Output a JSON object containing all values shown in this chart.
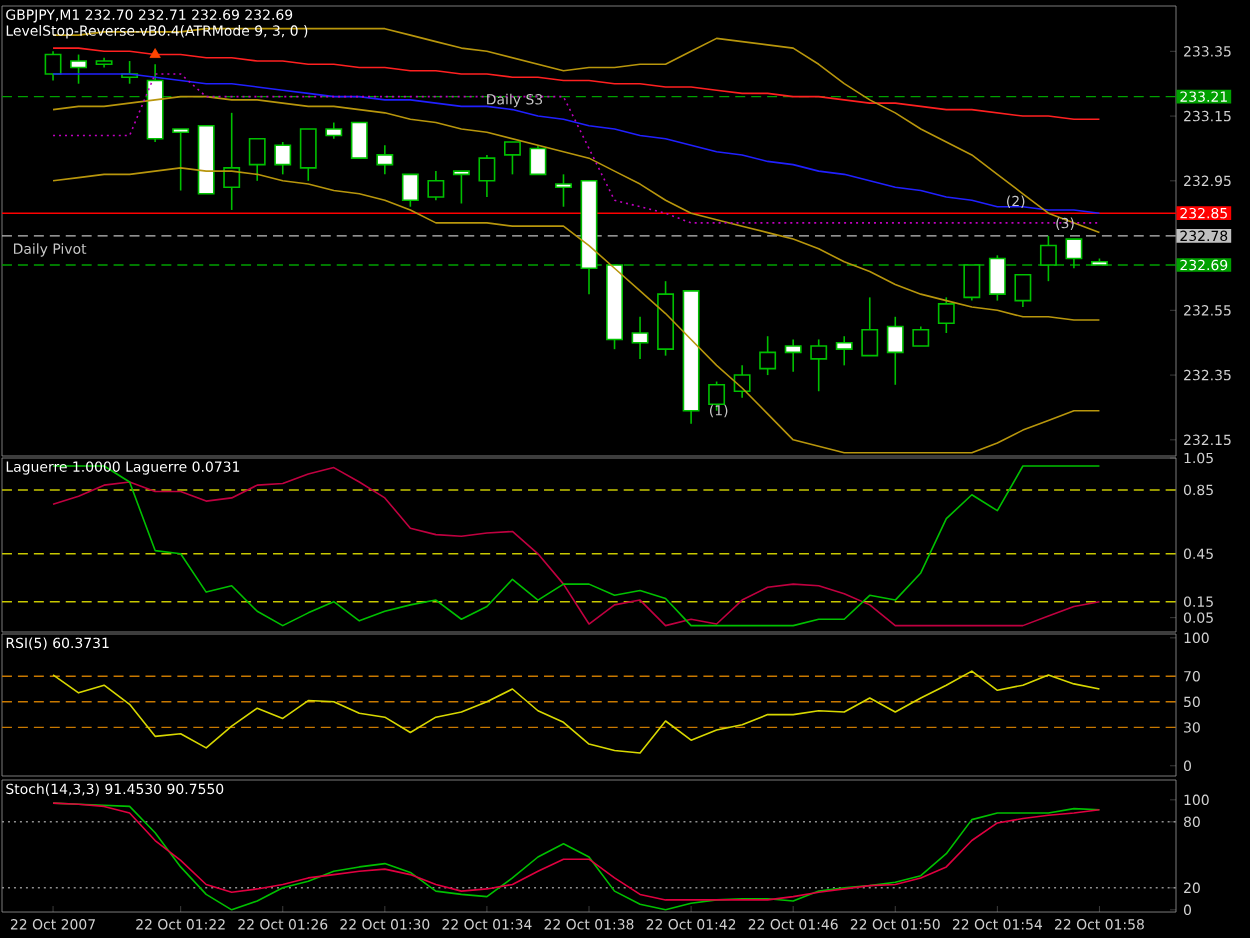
{
  "chart_data": [
    {
      "type": "candlestick",
      "title": "GBPJPY,M1  232.70 232.71 232.69 232.69",
      "subtitle": "LevelStop-Reverse-vB0.4(ATRMode 9, 3, 0 )",
      "color": "#00c000",
      "tick_labels": "y",
      "categories": [
        null,
        null,
        null,
        null,
        null,
        null,
        null,
        null,
        null,
        null,
        null,
        null,
        null,
        null,
        null,
        null,
        null,
        null,
        null,
        null,
        null,
        null,
        null,
        null,
        null,
        null,
        null,
        null,
        null,
        null,
        null,
        null,
        null,
        null,
        null,
        null,
        null,
        null,
        null,
        null,
        null,
        null
      ],
      "ohlc": [
        [
          233.28,
          233.35,
          233.26,
          233.34
        ],
        [
          233.32,
          233.34,
          233.25,
          233.3
        ],
        [
          233.31,
          233.33,
          233.3,
          233.32
        ],
        [
          233.27,
          233.32,
          233.25,
          233.28
        ],
        [
          233.26,
          233.31,
          233.07,
          233.08
        ],
        [
          233.11,
          233.11,
          232.92,
          233.1
        ],
        [
          233.12,
          233.12,
          232.91,
          232.91
        ],
        [
          232.93,
          233.16,
          232.86,
          232.99
        ],
        [
          233.0,
          233.08,
          232.95,
          233.08
        ],
        [
          233.06,
          233.07,
          232.97,
          233.0
        ],
        [
          232.99,
          233.11,
          232.95,
          233.11
        ],
        [
          233.11,
          233.13,
          233.08,
          233.09
        ],
        [
          233.13,
          233.13,
          233.02,
          233.02
        ],
        [
          233.03,
          233.06,
          232.97,
          233.0
        ],
        [
          232.97,
          232.97,
          232.87,
          232.89
        ],
        [
          232.9,
          232.98,
          232.89,
          232.95
        ],
        [
          232.98,
          232.98,
          232.88,
          232.97
        ],
        [
          232.95,
          233.03,
          232.9,
          233.02
        ],
        [
          233.03,
          233.07,
          232.97,
          233.07
        ],
        [
          233.05,
          233.06,
          232.97,
          232.97
        ],
        [
          232.94,
          232.97,
          232.87,
          232.93
        ],
        [
          232.95,
          232.95,
          232.6,
          232.68
        ],
        [
          232.69,
          232.69,
          232.43,
          232.46
        ],
        [
          232.48,
          232.53,
          232.4,
          232.45
        ],
        [
          232.43,
          232.64,
          232.41,
          232.6
        ],
        [
          232.61,
          232.61,
          232.2,
          232.24
        ],
        [
          232.26,
          232.33,
          232.24,
          232.32
        ],
        [
          232.3,
          232.38,
          232.28,
          232.35
        ],
        [
          232.37,
          232.47,
          232.35,
          232.42
        ],
        [
          232.44,
          232.46,
          232.36,
          232.42
        ],
        [
          232.4,
          232.46,
          232.3,
          232.44
        ],
        [
          232.45,
          232.47,
          232.38,
          232.43
        ],
        [
          232.41,
          232.59,
          232.41,
          232.49
        ],
        [
          232.5,
          232.53,
          232.32,
          232.42
        ],
        [
          232.44,
          232.5,
          232.44,
          232.49
        ],
        [
          232.51,
          232.59,
          232.48,
          232.57
        ],
        [
          232.59,
          232.69,
          232.58,
          232.69
        ],
        [
          232.71,
          232.72,
          232.58,
          232.6
        ],
        [
          232.58,
          232.66,
          232.56,
          232.66
        ],
        [
          232.69,
          232.78,
          232.64,
          232.75
        ],
        [
          232.77,
          232.77,
          232.68,
          232.71
        ],
        [
          232.7,
          232.71,
          232.69,
          232.69
        ]
      ],
      "series": [
        {
          "type": "line",
          "color": "#ff2020",
          "values": [
            233.36,
            233.36,
            233.35,
            233.35,
            233.34,
            233.34,
            233.33,
            233.33,
            233.32,
            233.32,
            233.31,
            233.31,
            233.3,
            233.3,
            233.29,
            233.29,
            233.28,
            233.28,
            233.27,
            233.27,
            233.26,
            233.26,
            233.25,
            233.25,
            233.24,
            233.24,
            233.23,
            233.22,
            233.22,
            233.21,
            233.21,
            233.2,
            233.19,
            233.19,
            233.18,
            233.17,
            233.17,
            233.16,
            233.15,
            233.15,
            233.14,
            233.14
          ]
        },
        {
          "type": "line",
          "color": "#2020ff",
          "values": [
            233.28,
            233.28,
            233.28,
            233.28,
            233.27,
            233.26,
            233.25,
            233.25,
            233.24,
            233.23,
            233.22,
            233.21,
            233.21,
            233.2,
            233.2,
            233.19,
            233.18,
            233.18,
            233.17,
            233.15,
            233.14,
            233.12,
            233.11,
            233.09,
            233.08,
            233.06,
            233.04,
            233.03,
            233.01,
            233.0,
            232.98,
            232.97,
            232.95,
            232.93,
            232.92,
            232.9,
            232.89,
            232.87,
            232.87,
            232.86,
            232.86,
            232.85
          ]
        },
        {
          "type": "line",
          "color": "#b8960c",
          "values": [
            233.4,
            233.4,
            233.41,
            233.41,
            233.41,
            233.41,
            233.42,
            233.42,
            233.42,
            233.42,
            233.42,
            233.42,
            233.42,
            233.42,
            233.4,
            233.38,
            233.36,
            233.35,
            233.33,
            233.31,
            233.29,
            233.3,
            233.3,
            233.31,
            233.31,
            233.35,
            233.39,
            233.38,
            233.37,
            233.36,
            233.31,
            233.25,
            233.2,
            233.16,
            233.11,
            233.07,
            233.03,
            232.97,
            232.91,
            232.85,
            232.82,
            232.79
          ]
        },
        {
          "type": "line",
          "color": "#b8960c",
          "values": [
            233.17,
            233.18,
            233.18,
            233.19,
            233.2,
            233.21,
            233.21,
            233.2,
            233.2,
            233.19,
            233.18,
            233.18,
            233.17,
            233.16,
            233.14,
            233.13,
            233.11,
            233.1,
            233.08,
            233.06,
            233.04,
            233.02,
            232.98,
            232.94,
            232.89,
            232.85,
            232.83,
            232.81,
            232.79,
            232.77,
            232.74,
            232.7,
            232.67,
            232.63,
            232.6,
            232.58,
            232.56,
            232.55,
            232.53,
            232.53,
            232.52,
            232.52
          ]
        },
        {
          "type": "line",
          "color": "#b8960c",
          "values": [
            232.95,
            232.96,
            232.97,
            232.97,
            232.98,
            232.99,
            232.98,
            232.98,
            232.97,
            232.95,
            232.94,
            232.92,
            232.91,
            232.89,
            232.86,
            232.82,
            232.82,
            232.82,
            232.81,
            232.81,
            232.81,
            232.75,
            232.68,
            232.61,
            232.54,
            232.46,
            232.38,
            232.31,
            232.23,
            232.15,
            232.13,
            232.11,
            232.11,
            232.11,
            232.11,
            232.11,
            232.11,
            232.14,
            232.18,
            232.21,
            232.24,
            232.24
          ]
        },
        {
          "type": "line",
          "color": "#c000c0",
          "line_style": "dotted",
          "values": [
            233.09,
            233.09,
            233.09,
            233.09,
            233.28,
            233.28,
            233.21,
            233.21,
            233.21,
            233.21,
            233.21,
            233.21,
            233.21,
            233.21,
            233.21,
            233.21,
            233.21,
            233.21,
            233.21,
            233.21,
            233.21,
            233.05,
            232.89,
            232.87,
            232.85,
            232.82,
            232.82,
            232.82,
            232.82,
            232.82,
            232.82,
            232.82,
            232.82,
            232.82,
            232.82,
            232.82,
            232.82,
            232.82,
            232.82,
            232.82,
            232.82,
            232.82
          ]
        },
        {
          "type": "scatter",
          "color": "#ff4500",
          "marker": "triangle",
          "values": [
            null,
            null,
            null,
            null,
            233.34,
            null,
            null,
            null,
            null,
            null,
            null,
            null,
            null,
            null,
            null,
            null,
            null,
            null,
            null,
            null,
            null,
            null,
            null,
            null,
            null,
            null,
            null,
            null,
            null,
            null,
            null,
            null,
            null,
            null,
            null,
            null,
            null,
            null,
            null,
            null,
            null,
            null
          ]
        }
      ],
      "ylim": [
        232.1,
        233.49
      ],
      "yticks": [
        233.35,
        233.15,
        232.95,
        232.55,
        232.35,
        232.15
      ],
      "ref_lines": [
        {
          "axis": "y",
          "value": 233.21,
          "label": "233.21",
          "color": "#00a000",
          "line_style": "dashed"
        },
        {
          "axis": "y",
          "value": 232.85,
          "label": "232.85",
          "color": "#ff0000",
          "line_style": "solid"
        },
        {
          "axis": "y",
          "value": 232.78,
          "label": "232.78",
          "color": "#c0c0c0",
          "line_style": "dashed"
        },
        {
          "axis": "y",
          "value": 232.69,
          "label": "232.69",
          "color": "#00a000",
          "line_style": "dashed"
        }
      ],
      "annotations": [
        "(1)",
        "(2)",
        "(3)",
        "Daily S3",
        "Daily Pivot"
      ]
    },
    {
      "type": "line",
      "title": "Laguerre 1.0000  Laguerre 0.0731",
      "tick_labels": "y",
      "categories": [
        null,
        null,
        null,
        null,
        null,
        null,
        null,
        null,
        null,
        null,
        null,
        null,
        null,
        null,
        null,
        null,
        null,
        null,
        null,
        null,
        null,
        null,
        null,
        null,
        null,
        null,
        null,
        null,
        null,
        null,
        null,
        null,
        null,
        null,
        null,
        null,
        null,
        null,
        null,
        null,
        null,
        null
      ],
      "ylim": [
        -0.04,
        1.05
      ],
      "yticks": [
        1.05,
        0.85,
        0.45,
        0.15,
        0.05
      ],
      "series": [
        {
          "color": "#c00040",
          "values": [
            0.76,
            0.81,
            0.88,
            0.9,
            0.84,
            0.84,
            0.78,
            0.8,
            0.88,
            0.89,
            0.95,
            0.99,
            0.9,
            0.8,
            0.61,
            0.57,
            0.56,
            0.58,
            0.59,
            0.45,
            0.26,
            0.01,
            0.13,
            0.16,
            0.0,
            0.04,
            0.01,
            0.16,
            0.24,
            0.26,
            0.25,
            0.2,
            0.13,
            0.0,
            0.0,
            0.0,
            0.0,
            0.0,
            0.0,
            0.06,
            0.12,
            0.15
          ]
        },
        {
          "color": "#00c000",
          "values": [
            1.0,
            1.0,
            1.0,
            0.9,
            0.47,
            0.45,
            0.21,
            0.25,
            0.09,
            0.0,
            0.08,
            0.15,
            0.03,
            0.09,
            0.13,
            0.16,
            0.04,
            0.12,
            0.29,
            0.16,
            0.26,
            0.26,
            0.19,
            0.22,
            0.17,
            0.0,
            0.0,
            0.0,
            0.0,
            0.0,
            0.04,
            0.04,
            0.19,
            0.16,
            0.33,
            0.67,
            0.82,
            0.72,
            1.0,
            1.0,
            1.0,
            1.0
          ]
        }
      ],
      "ref_lines": [
        {
          "axis": "y",
          "value": 0.85,
          "color": "#c8c800",
          "line_style": "dashed"
        },
        {
          "axis": "y",
          "value": 0.45,
          "color": "#c8c800",
          "line_style": "dashed"
        },
        {
          "axis": "y",
          "value": 0.15,
          "color": "#c8c800",
          "line_style": "dashed"
        }
      ]
    },
    {
      "type": "line",
      "title": "RSI(5) 60.3731",
      "tick_labels": "y",
      "categories": [
        null,
        null,
        null,
        null,
        null,
        null,
        null,
        null,
        null,
        null,
        null,
        null,
        null,
        null,
        null,
        null,
        null,
        null,
        null,
        null,
        null,
        null,
        null,
        null,
        null,
        null,
        null,
        null,
        null,
        null,
        null,
        null,
        null,
        null,
        null,
        null,
        null,
        null,
        null,
        null,
        null,
        null
      ],
      "ylim": [
        -8,
        103
      ],
      "yticks": [
        100,
        70,
        50,
        30,
        0
      ],
      "series": [
        {
          "color": "#d8d800",
          "values": [
            71,
            57,
            63,
            48,
            23,
            25,
            14,
            31,
            45,
            37,
            51,
            50,
            41,
            38,
            26,
            38,
            42,
            50,
            60,
            43,
            34,
            17,
            12,
            10,
            35,
            20,
            28,
            32,
            40,
            40,
            43,
            42,
            53,
            42,
            53,
            63,
            74,
            59,
            63,
            71,
            64,
            60
          ]
        }
      ],
      "ref_lines": [
        {
          "axis": "y",
          "value": 70,
          "color": "#c87800",
          "line_style": "dashed"
        },
        {
          "axis": "y",
          "value": 50,
          "color": "#c87800",
          "line_style": "dashed"
        },
        {
          "axis": "y",
          "value": 30,
          "color": "#c87800",
          "line_style": "dashed"
        }
      ]
    },
    {
      "type": "line",
      "title": "Stoch(14,3,3) 91.4530 90.7550",
      "categories": [
        "22 Oct 2007",
        null,
        null,
        null,
        null,
        "22 Oct 01:22",
        null,
        null,
        null,
        "22 Oct 01:26",
        null,
        null,
        null,
        "22 Oct 01:30",
        null,
        null,
        null,
        "22 Oct 01:34",
        null,
        null,
        null,
        "22 Oct 01:38",
        null,
        null,
        null,
        "22 Oct 01:42",
        null,
        null,
        null,
        "22 Oct 01:46",
        null,
        null,
        null,
        "22 Oct 01:50",
        null,
        null,
        null,
        "22 Oct 01:54",
        null,
        null,
        null,
        "22 Oct 01:58"
      ],
      "ylim": [
        -2,
        118
      ],
      "yticks": [
        100,
        80,
        20,
        0
      ],
      "series": [
        {
          "color": "#00c000",
          "values": [
            97,
            96,
            95,
            94,
            70,
            39,
            14,
            0,
            8,
            20,
            26,
            35,
            39,
            42,
            34,
            17,
            14,
            12,
            29,
            48,
            60,
            48,
            17,
            5,
            0,
            6,
            9,
            10,
            10,
            8,
            17,
            20,
            22,
            25,
            31,
            51,
            82,
            88,
            88,
            88,
            92,
            91
          ]
        },
        {
          "color": "#e00040",
          "values": [
            97,
            96,
            94,
            88,
            63,
            45,
            23,
            16,
            19,
            23,
            29,
            32,
            35,
            37,
            32,
            23,
            17,
            19,
            23,
            35,
            46,
            46,
            29,
            14,
            9,
            9,
            9,
            9,
            9,
            12,
            16,
            19,
            22,
            23,
            29,
            39,
            63,
            79,
            83,
            86,
            88,
            91
          ]
        }
      ],
      "ref_lines": [
        {
          "axis": "y",
          "value": 80,
          "color": "#909090",
          "line_style": "dotted"
        },
        {
          "axis": "y",
          "value": 20,
          "color": "#909090",
          "line_style": "dotted"
        }
      ]
    }
  ]
}
